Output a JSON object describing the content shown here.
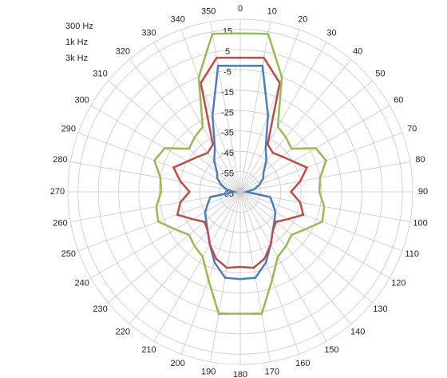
{
  "chart_data": {
    "type": "radar",
    "categories": [
      "0",
      "10",
      "20",
      "30",
      "40",
      "50",
      "60",
      "70",
      "80",
      "90",
      "100",
      "110",
      "120",
      "130",
      "140",
      "150",
      "160",
      "170",
      "180",
      "190",
      "200",
      "210",
      "220",
      "230",
      "240",
      "250",
      "260",
      "270",
      "280",
      "290",
      "300",
      "310",
      "320",
      "330",
      "340",
      "350"
    ],
    "ylim": [
      -65,
      20
    ],
    "yticks": [
      -65,
      -55,
      -45,
      -35,
      -25,
      -15,
      -5,
      5,
      15
    ],
    "grid": true,
    "legend": "top-left",
    "series": [
      {
        "name": "300 Hz",
        "color": "#4a7ebb",
        "values": [
          -3,
          -2,
          -25,
          -40,
          -45,
          -50,
          -52,
          -55,
          -58,
          -62,
          -50,
          -48,
          -45,
          -43,
          -40,
          -35,
          -28,
          -22,
          -22,
          -22,
          -28,
          -35,
          -40,
          -43,
          -45,
          -48,
          -50,
          -62,
          -58,
          -55,
          -52,
          -50,
          -45,
          -40,
          -25,
          -2
        ]
      },
      {
        "name": "1k Hz",
        "color": "#be4b48",
        "values": [
          1,
          2,
          -8,
          -38,
          -40,
          -38,
          -35,
          -30,
          -35,
          -40,
          -35,
          -32,
          -38,
          -42,
          -40,
          -35,
          -30,
          -27,
          -28,
          -27,
          -30,
          -35,
          -40,
          -42,
          -38,
          -32,
          -35,
          -40,
          -35,
          -30,
          -35,
          -38,
          -40,
          -38,
          -8,
          2
        ]
      },
      {
        "name": "3k Hz",
        "color": "#98b954",
        "values": [
          13,
          14,
          -5,
          -28,
          -30,
          -32,
          -22,
          -20,
          -25,
          -26,
          -23,
          -22,
          -28,
          -32,
          -30,
          -28,
          -19,
          -4,
          -5,
          -4,
          -19,
          -28,
          -30,
          -32,
          -28,
          -22,
          -23,
          -26,
          -25,
          -20,
          -22,
          -32,
          -30,
          -28,
          -5,
          14
        ]
      }
    ]
  }
}
